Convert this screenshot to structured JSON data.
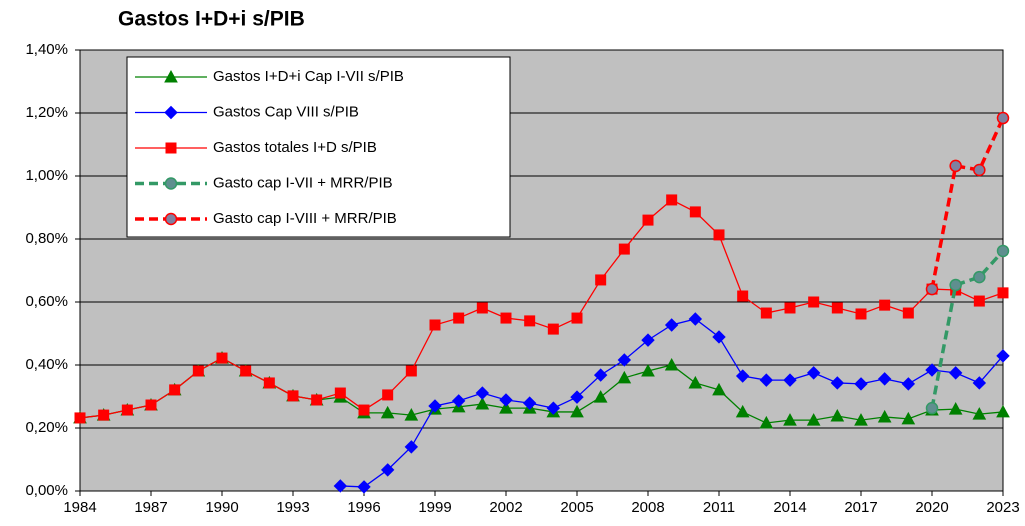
{
  "chart_data": {
    "type": "line",
    "title": "Gastos I+D+i  s/PIB",
    "x": [
      1984,
      1985,
      1986,
      1987,
      1988,
      1989,
      1990,
      1991,
      1992,
      1993,
      1994,
      1995,
      1996,
      1997,
      1998,
      1999,
      2000,
      2001,
      2002,
      2003,
      2004,
      2005,
      2006,
      2007,
      2008,
      2009,
      2010,
      2011,
      2012,
      2013,
      2014,
      2015,
      2016,
      2017,
      2018,
      2019,
      2020,
      2021,
      2022,
      2023
    ],
    "xlim": [
      1984,
      2023
    ],
    "xticks": [
      1984,
      1987,
      1990,
      1993,
      1996,
      1999,
      2002,
      2005,
      2008,
      2011,
      2014,
      2017,
      2020,
      2023
    ],
    "ylim": [
      0,
      1.4
    ],
    "yticks": [
      {
        "value": 0,
        "label": "0,00%"
      },
      {
        "value": 0.2,
        "label": "0,20%"
      },
      {
        "value": 0.4,
        "label": "0,40%"
      },
      {
        "value": 0.6,
        "label": "0,60%"
      },
      {
        "value": 0.8,
        "label": "0,80%"
      },
      {
        "value": 1.0,
        "label": "1,00%"
      },
      {
        "value": 1.2,
        "label": "1,20%"
      },
      {
        "value": 1.4,
        "label": "1,40%"
      }
    ],
    "grid": true,
    "legend": "top-left",
    "background": "#c0c0c0",
    "series": [
      {
        "name": "Gastos I+D+i Cap I-VII s/PIB",
        "color": "#008000",
        "marker": "triangle",
        "marker_color": "#008000",
        "dashed": false,
        "values": [
          0.232,
          0.241,
          0.257,
          0.273,
          0.321,
          0.381,
          0.422,
          0.381,
          0.343,
          0.302,
          0.289,
          0.298,
          0.248,
          0.248,
          0.241,
          0.26,
          0.267,
          0.276,
          0.263,
          0.263,
          0.251,
          0.251,
          0.298,
          0.359,
          0.381,
          0.4,
          0.343,
          0.321,
          0.251,
          0.216,
          0.225,
          0.225,
          0.238,
          0.225,
          0.235,
          0.229,
          0.257,
          0.26,
          0.244,
          0.251
        ]
      },
      {
        "name": "Gastos Cap VIII s/PIB",
        "color": "#0000ff",
        "marker": "diamond",
        "marker_color": "#0000ff",
        "dashed": false,
        "values": [
          null,
          null,
          null,
          null,
          null,
          null,
          null,
          null,
          null,
          null,
          null,
          0.016,
          0.013,
          0.067,
          0.14,
          0.27,
          0.286,
          0.311,
          0.289,
          0.279,
          0.263,
          0.298,
          0.368,
          0.416,
          0.479,
          0.527,
          0.546,
          0.489,
          0.365,
          0.352,
          0.352,
          0.375,
          0.343,
          0.34,
          0.356,
          0.34,
          0.384,
          0.375,
          0.343,
          0.429
        ]
      },
      {
        "name": "Gastos totales I+D s/PIB",
        "color": "#ff0000",
        "marker": "square",
        "marker_color": "#ff0000",
        "dashed": false,
        "values": [
          0.232,
          0.241,
          0.257,
          0.273,
          0.321,
          0.381,
          0.422,
          0.381,
          0.343,
          0.302,
          0.289,
          0.311,
          0.257,
          0.305,
          0.381,
          0.527,
          0.549,
          0.581,
          0.549,
          0.54,
          0.514,
          0.549,
          0.67,
          0.768,
          0.86,
          0.924,
          0.886,
          0.813,
          0.619,
          0.565,
          0.581,
          0.6,
          0.581,
          0.562,
          0.59,
          0.565,
          0.641,
          0.638,
          0.603,
          0.629
        ]
      },
      {
        "name": "Gasto cap I-VII + MRR/PIB",
        "color": "#339966",
        "marker": "circle",
        "marker_color": "#5f8f8f",
        "dashed": true,
        "values": [
          null,
          null,
          null,
          null,
          null,
          null,
          null,
          null,
          null,
          null,
          null,
          null,
          null,
          null,
          null,
          null,
          null,
          null,
          null,
          null,
          null,
          null,
          null,
          null,
          null,
          null,
          null,
          null,
          null,
          null,
          null,
          null,
          null,
          null,
          null,
          null,
          0.263,
          0.654,
          0.679,
          0.762
        ]
      },
      {
        "name": "Gasto cap I-VIII + MRR/PIB",
        "color": "#ff0000",
        "marker": "circle",
        "marker_color": "#8080a0",
        "dashed": true,
        "values": [
          null,
          null,
          null,
          null,
          null,
          null,
          null,
          null,
          null,
          null,
          null,
          null,
          null,
          null,
          null,
          null,
          null,
          null,
          null,
          null,
          null,
          null,
          null,
          null,
          null,
          null,
          null,
          null,
          null,
          null,
          null,
          null,
          null,
          null,
          null,
          null,
          0.641,
          1.032,
          1.019,
          1.184
        ]
      }
    ]
  }
}
